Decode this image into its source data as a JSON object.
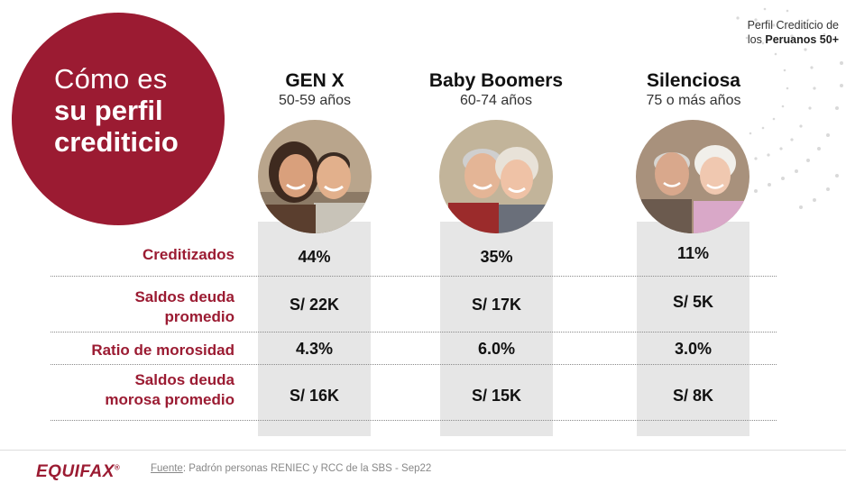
{
  "header": {
    "title_line1": "Cómo es",
    "title_line2": "su perfil",
    "title_line3": "crediticio",
    "corner_line1": "Perfil Crediticio de",
    "corner_line2_prefix": "los ",
    "corner_line2_bold": "Peruanos 50+"
  },
  "generations": [
    {
      "name": "GEN X",
      "ages": "50-59 años"
    },
    {
      "name": "Baby Boomers",
      "ages": "60-74 años"
    },
    {
      "name": "Silenciosa",
      "ages": "75 o más años"
    }
  ],
  "rows": [
    {
      "label_line1": "Creditizados",
      "label_line2": "",
      "values": [
        "44%",
        "35%",
        "11%"
      ]
    },
    {
      "label_line1": "Saldos deuda",
      "label_line2": "promedio",
      "values": [
        "S/ 22K",
        "S/ 17K",
        "S/ 5K"
      ]
    },
    {
      "label_line1": "Ratio de morosidad",
      "label_line2": "",
      "values": [
        "4.3%",
        "6.0%",
        "3.0%"
      ]
    },
    {
      "label_line1": "Saldos deuda",
      "label_line2": "morosa promedio",
      "values": [
        "S/ 16K",
        "S/ 15K",
        "S/ 8K"
      ]
    }
  ],
  "footer": {
    "logo": "EQUIFAX",
    "logo_mark": "®",
    "source_label": "Fuente",
    "source_text": ": Padrón personas RENIEC y RCC de la SBS - Sep22"
  },
  "colors": {
    "brand": "#9b1b32",
    "column_bg": "#e6e6e6"
  }
}
